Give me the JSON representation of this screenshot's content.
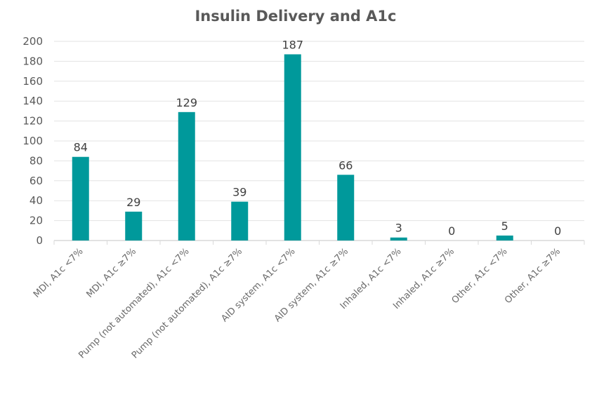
{
  "chart_data": {
    "type": "bar",
    "title": "Insulin Delivery and A1c",
    "xlabel": "",
    "ylabel": "",
    "ylim": [
      0,
      200
    ],
    "yticks": [
      0,
      20,
      40,
      60,
      80,
      100,
      120,
      140,
      160,
      180,
      200
    ],
    "grid": true,
    "color": "#00999b",
    "categories": [
      "MDI, A1c <7%",
      "MDI, A1c ≥7%",
      "Pump (not automated), A1c <7%",
      "Pump (not automated), A1c ≥7%",
      "AID system, A1c <7%",
      "AID system, A1c ≥7%",
      "Inhaled, A1c <7%",
      "Inhaled, A1c ≥7%",
      "Other, A1c <7%",
      "Other, A1c ≥7%"
    ],
    "values": [
      84,
      29,
      129,
      39,
      187,
      66,
      3,
      0,
      5,
      0
    ]
  }
}
